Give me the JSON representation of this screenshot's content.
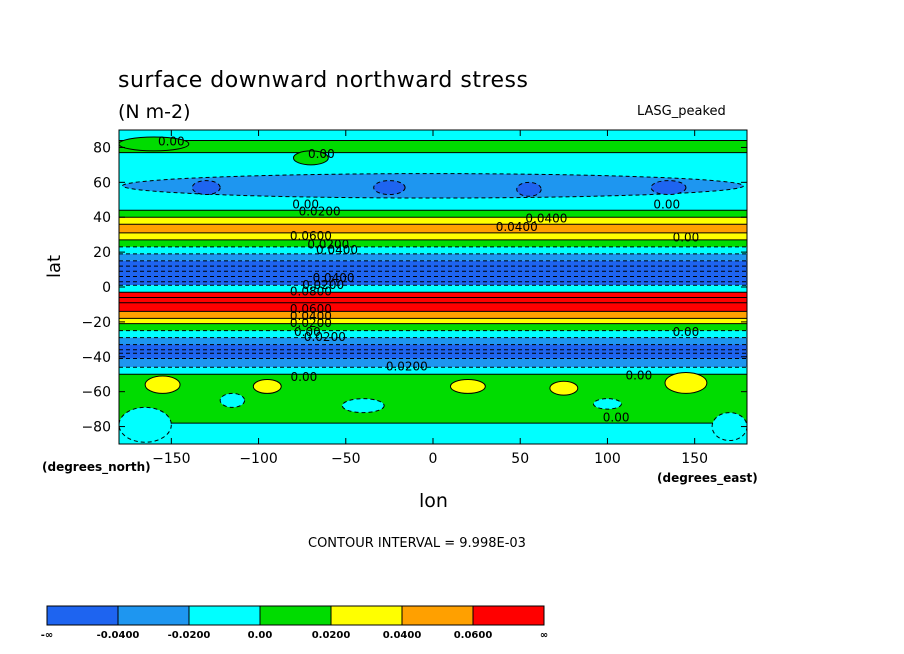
{
  "chart_data": {
    "type": "heatmap",
    "title": "surface downward northward stress",
    "units": "(N m-2)",
    "dataset": "LASG_peaked",
    "xlabel": "lon",
    "ylabel": "lat",
    "x_units": "(degrees_east)",
    "y_units": "(degrees_north)",
    "xlim": [
      -180,
      180
    ],
    "ylim": [
      -90,
      90
    ],
    "x_ticks": [
      -150,
      -100,
      -50,
      0,
      50,
      100,
      150
    ],
    "y_ticks": [
      80,
      60,
      40,
      20,
      0,
      -20,
      -40,
      -60,
      -80
    ],
    "contour_interval_text": "CONTOUR INTERVAL = 9.998E-03",
    "colorbar": {
      "levels": [
        "-∞",
        "-0.0400",
        "-0.0200",
        "0.00",
        "0.0200",
        "0.0400",
        "0.0600",
        "∞"
      ],
      "colors": [
        "#1e64f0",
        "#1e96f0",
        "#00ffff",
        "#00dc00",
        "#ffff00",
        "#ffa000",
        "#ff0000"
      ]
    },
    "latitude_bands": [
      {
        "lat_from": 90,
        "lat_to": 84,
        "level": 2
      },
      {
        "lat_from": 84,
        "lat_to": 77,
        "level": 3
      },
      {
        "lat_from": 77,
        "lat_to": 44,
        "level": 2
      },
      {
        "lat_from": 44,
        "lat_to": 40,
        "level": 3
      },
      {
        "lat_from": 40,
        "lat_to": 36,
        "level": 4
      },
      {
        "lat_from": 36,
        "lat_to": 31,
        "level": 5
      },
      {
        "lat_from": 31,
        "lat_to": 27,
        "level": 4
      },
      {
        "lat_from": 27,
        "lat_to": 23,
        "level": 3
      },
      {
        "lat_from": 23,
        "lat_to": 19,
        "level": 2
      },
      {
        "lat_from": 19,
        "lat_to": 15,
        "level": 1
      },
      {
        "lat_from": 15,
        "lat_to": 1,
        "level": 0
      },
      {
        "lat_from": 1,
        "lat_to": -3,
        "level": 2
      },
      {
        "lat_from": -3,
        "lat_to": -14,
        "level": 6
      },
      {
        "lat_from": -14,
        "lat_to": -18,
        "level": 5
      },
      {
        "lat_from": -18,
        "lat_to": -21,
        "level": 4
      },
      {
        "lat_from": -21,
        "lat_to": -25,
        "level": 3
      },
      {
        "lat_from": -25,
        "lat_to": -29,
        "level": 2
      },
      {
        "lat_from": -29,
        "lat_to": -33,
        "level": 1
      },
      {
        "lat_from": -33,
        "lat_to": -41,
        "level": 0
      },
      {
        "lat_from": -41,
        "lat_to": -46,
        "level": 1
      },
      {
        "lat_from": -46,
        "lat_to": -50,
        "level": 2
      },
      {
        "lat_from": -50,
        "lat_to": -78,
        "level": 3
      },
      {
        "lat_from": -78,
        "lat_to": -90,
        "level": 2
      }
    ],
    "patches": [
      {
        "lon": 0,
        "lat": 58,
        "rlon": 178,
        "rlat": 7,
        "level": 1
      },
      {
        "lon": -130,
        "lat": 57,
        "rlon": 8,
        "rlat": 4,
        "level": 0
      },
      {
        "lon": -25,
        "lat": 57,
        "rlon": 9,
        "rlat": 4,
        "level": 0
      },
      {
        "lon": 55,
        "lat": 56,
        "rlon": 7,
        "rlat": 4,
        "level": 0
      },
      {
        "lon": 135,
        "lat": 57,
        "rlon": 10,
        "rlat": 4,
        "level": 0
      },
      {
        "lon": -160,
        "lat": 82,
        "rlon": 20,
        "rlat": 4,
        "level": 3
      },
      {
        "lon": -70,
        "lat": 74,
        "rlon": 10,
        "rlat": 4,
        "level": 3
      },
      {
        "lon": -155,
        "lat": -56,
        "rlon": 10,
        "rlat": 5,
        "level": 4
      },
      {
        "lon": -95,
        "lat": -57,
        "rlon": 8,
        "rlat": 4,
        "level": 4
      },
      {
        "lon": 20,
        "lat": -57,
        "rlon": 10,
        "rlat": 4,
        "level": 4
      },
      {
        "lon": 75,
        "lat": -58,
        "rlon": 8,
        "rlat": 4,
        "level": 4
      },
      {
        "lon": 145,
        "lat": -55,
        "rlon": 12,
        "rlat": 6,
        "level": 4
      },
      {
        "lon": -165,
        "lat": -79,
        "rlon": 15,
        "rlat": 10,
        "level": 2
      },
      {
        "lon": -115,
        "lat": -65,
        "rlon": 7,
        "rlat": 4,
        "level": 2
      },
      {
        "lon": -40,
        "lat": -68,
        "rlon": 12,
        "rlat": 4,
        "level": 2
      },
      {
        "lon": 100,
        "lat": -67,
        "rlon": 8,
        "rlat": 3,
        "level": 2
      },
      {
        "lon": 170,
        "lat": -80,
        "rlon": 10,
        "rlat": 8,
        "level": 2
      }
    ],
    "contour_labels": [
      {
        "text": "0.00",
        "lon": -150,
        "lat": 83
      },
      {
        "text": "0.00",
        "lon": -64,
        "lat": 76
      },
      {
        "text": "0.00",
        "lon": -73,
        "lat": 47
      },
      {
        "text": "0.0200",
        "lon": -65,
        "lat": 43
      },
      {
        "text": "0.0400",
        "lon": 65,
        "lat": 39
      },
      {
        "text": "0.0400",
        "lon": 48,
        "lat": 34
      },
      {
        "text": "0.00",
        "lon": 134,
        "lat": 47
      },
      {
        "text": "0.0600",
        "lon": -70,
        "lat": 29
      },
      {
        "text": "0.0200",
        "lon": -60,
        "lat": 24
      },
      {
        "text": "0.0400",
        "lon": -55,
        "lat": 21
      },
      {
        "text": "0.00",
        "lon": 145,
        "lat": 28
      },
      {
        "text": "0.0400",
        "lon": -57,
        "lat": 5
      },
      {
        "text": "0.0200",
        "lon": -63,
        "lat": 1
      },
      {
        "text": "0.0800",
        "lon": -70,
        "lat": -3
      },
      {
        "text": "0.0600",
        "lon": -70,
        "lat": -13
      },
      {
        "text": "0.0400",
        "lon": -70,
        "lat": -17
      },
      {
        "text": "0.0200",
        "lon": -70,
        "lat": -21
      },
      {
        "text": "0.00",
        "lon": -72,
        "lat": -26
      },
      {
        "text": "0.0200",
        "lon": -62,
        "lat": -29
      },
      {
        "text": "0.00",
        "lon": 145,
        "lat": -26
      },
      {
        "text": "0.0200",
        "lon": -15,
        "lat": -46
      },
      {
        "text": "0.00",
        "lon": -74,
        "lat": -52
      },
      {
        "text": "0.00",
        "lon": 118,
        "lat": -51
      },
      {
        "text": "0.00",
        "lon": 105,
        "lat": -75
      }
    ]
  }
}
